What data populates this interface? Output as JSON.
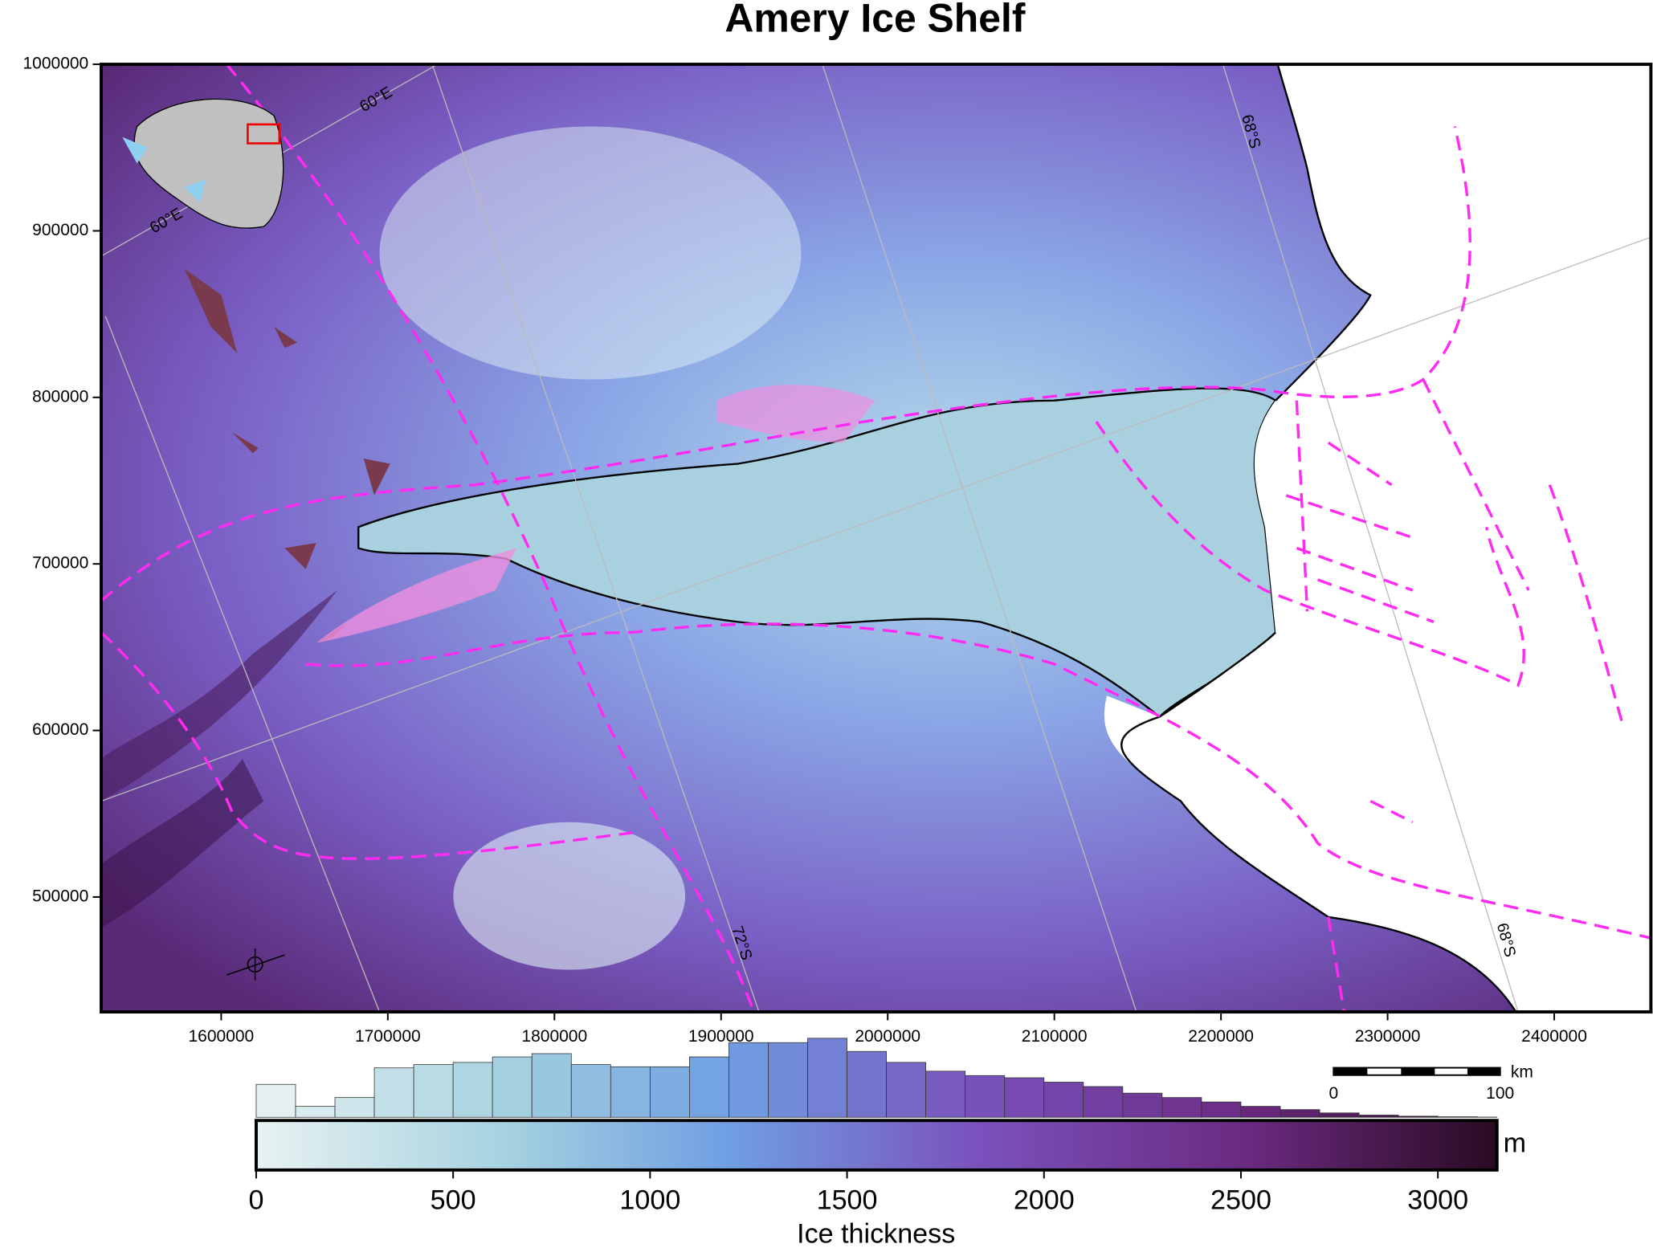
{
  "chart_data": {
    "type": "map",
    "title": "Amery Ice Shelf",
    "xlim": [
      1528000,
      2458000
    ],
    "xticks": [
      1600000,
      1700000,
      1800000,
      1900000,
      2000000,
      2100000,
      2200000,
      2300000,
      2400000
    ],
    "ylim": [
      431000,
      1000000
    ],
    "yticks": [
      500000,
      600000,
      700000,
      800000,
      900000,
      1000000
    ],
    "graticule_labels": [
      "60°E",
      "60°E",
      "68°S",
      "68°S",
      "72°S"
    ],
    "scale_bar": {
      "ticks": [
        0,
        100
      ],
      "unit": "km"
    },
    "colorbar": {
      "label": "Ice thickness",
      "unit": "m",
      "lim": [
        0,
        3150
      ],
      "ticks": [
        0,
        500,
        1000,
        1500,
        2000,
        2500,
        3000
      ]
    },
    "histogram": {
      "bins": [
        0,
        100,
        200,
        300,
        400,
        500,
        600,
        700,
        800,
        900,
        1000,
        1100,
        1200,
        1300,
        1400,
        1500,
        1600,
        1700,
        1800,
        1900,
        2000,
        2100,
        2200,
        2300,
        2400,
        2500,
        2600,
        2700,
        2800,
        2900,
        3000,
        3100,
        3200
      ],
      "counts": [
        30,
        10,
        18,
        45,
        48,
        50,
        55,
        58,
        48,
        46,
        46,
        55,
        68,
        68,
        72,
        60,
        50,
        42,
        38,
        36,
        32,
        28,
        22,
        18,
        14,
        10,
        7,
        4,
        2,
        1,
        0.5,
        0.2
      ]
    }
  }
}
